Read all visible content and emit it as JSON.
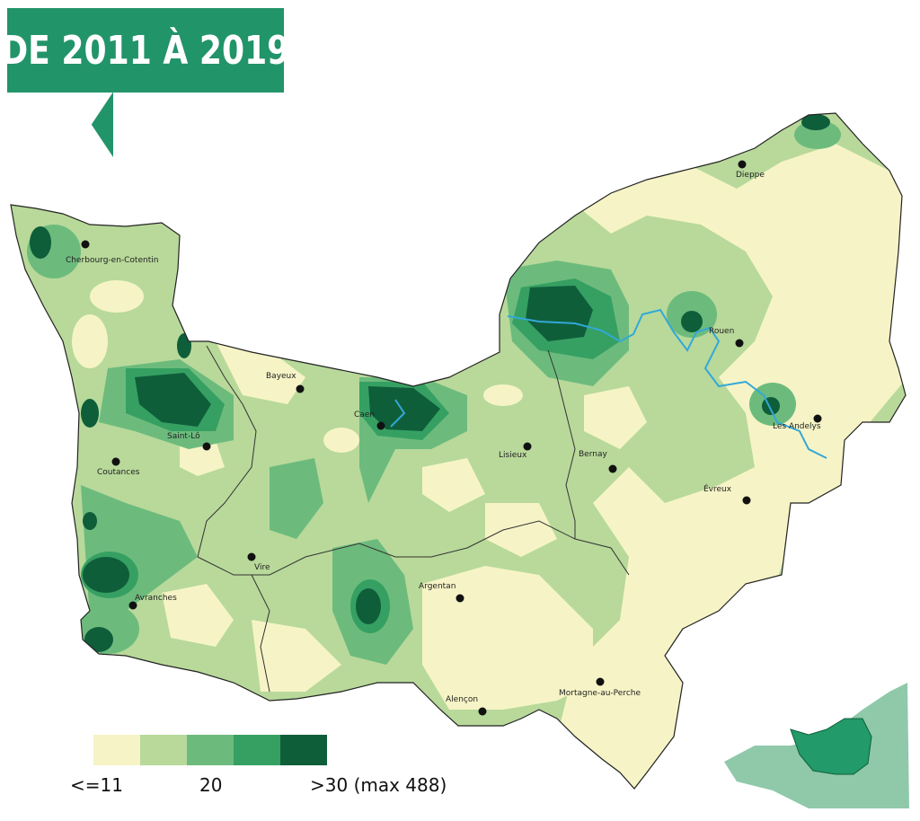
{
  "title": "DE 2011 À 2019",
  "colors": {
    "title_bg": "#22946a",
    "level_1": "#f6f4c6",
    "level_2": "#b8d99a",
    "level_3": "#6cbb7d",
    "level_4": "#35a062",
    "level_5": "#0f5e3a",
    "river": "#33a8d8",
    "inset_region": "#229a6a",
    "inset_land": "#8fc9aa"
  },
  "legend": {
    "swatch_colors": [
      "#f6f4c6",
      "#b8d99a",
      "#6cbb7d",
      "#35a062",
      "#0f5e3a"
    ],
    "min_label": "<=11",
    "mid_label": "20",
    "max_label": ">30 (max 488)"
  },
  "cities": [
    {
      "id": "cherbourg",
      "name": "Cherbourg-en-Cotentin"
    },
    {
      "id": "dieppe",
      "name": "Dieppe"
    },
    {
      "id": "bayeux",
      "name": "Bayeux"
    },
    {
      "id": "caen",
      "name": "Caen"
    },
    {
      "id": "rouen",
      "name": "Rouen"
    },
    {
      "id": "saint-lo",
      "name": "Saint-Lô"
    },
    {
      "id": "coutances",
      "name": "Coutances"
    },
    {
      "id": "lisieux",
      "name": "Lisieux"
    },
    {
      "id": "bernay",
      "name": "Bernay"
    },
    {
      "id": "les-andelys",
      "name": "Les Andelys"
    },
    {
      "id": "evreux",
      "name": "Évreux"
    },
    {
      "id": "vire",
      "name": "Vire"
    },
    {
      "id": "avranches",
      "name": "Avranches"
    },
    {
      "id": "argentan",
      "name": "Argentan"
    },
    {
      "id": "alencon",
      "name": "Alençon"
    },
    {
      "id": "mortagne",
      "name": "Mortagne-au-Perche"
    }
  ]
}
